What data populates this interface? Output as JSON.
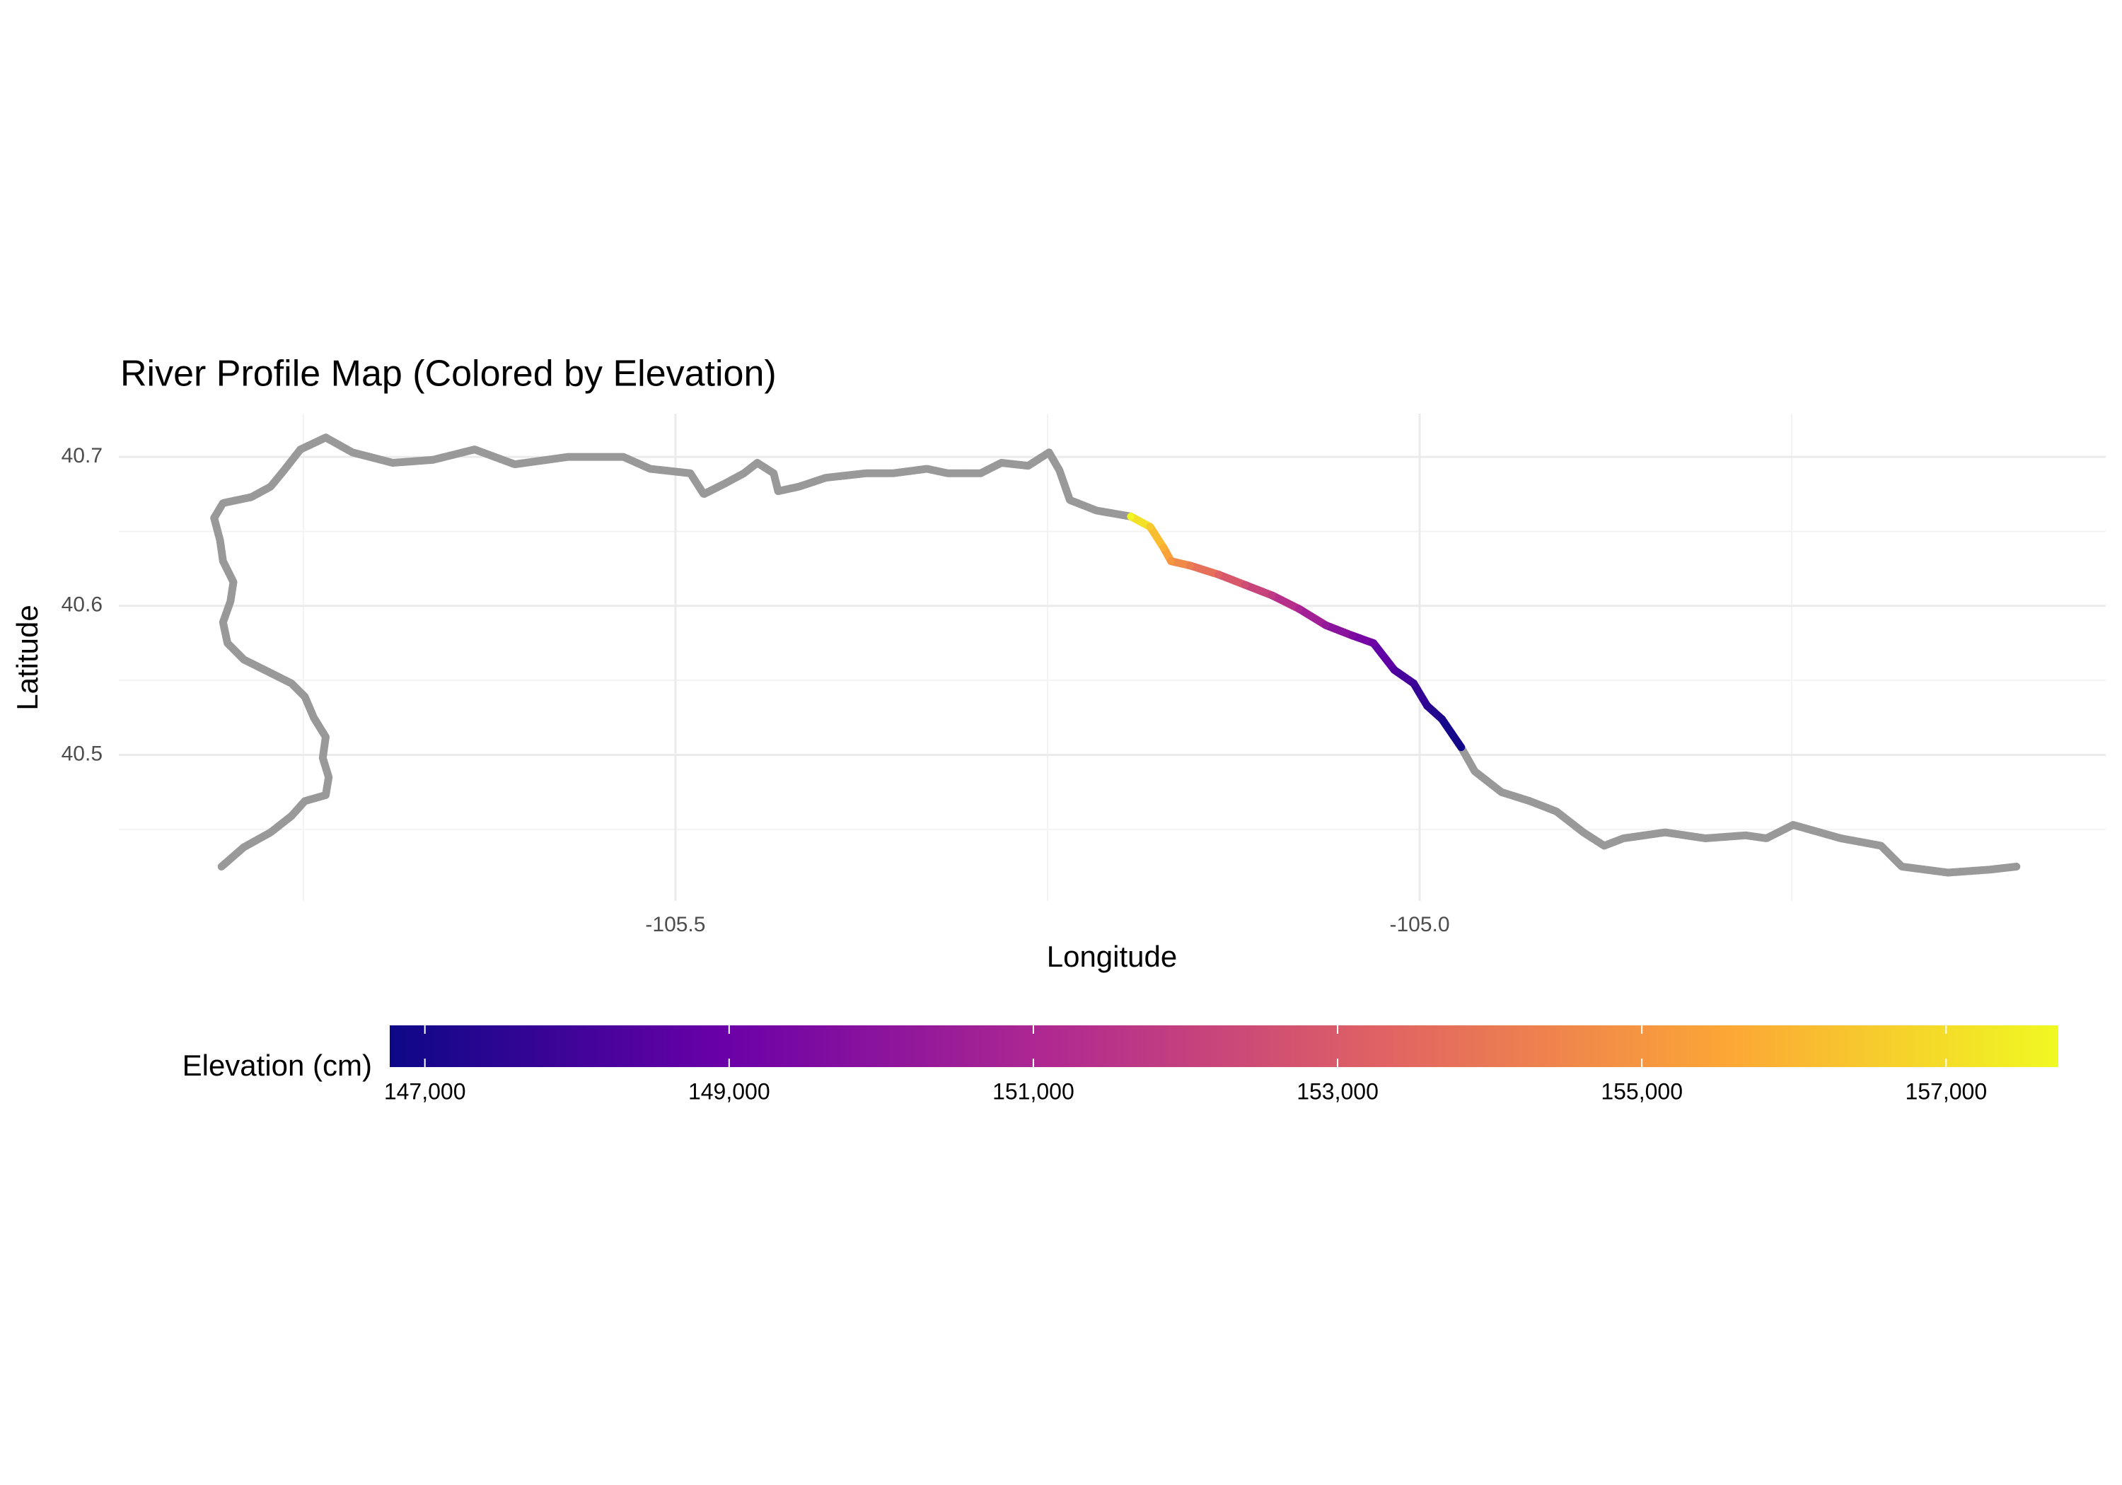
{
  "chart_data": {
    "type": "line",
    "title": "River Profile Map (Colored by Elevation)",
    "x_label": "Longitude",
    "y_label": "Latitude",
    "xlim": [
      -105.874,
      -104.539
    ],
    "ylim": [
      40.402,
      40.729
    ],
    "xticks": [
      -105.5,
      {
        "value": -105,
        "label": "-105.0"
      }
    ],
    "yticks": [
      40.5,
      40.6,
      40.7
    ],
    "xminor": [
      -105.75,
      -105.25,
      -104.75
    ],
    "yminor": [
      40.45,
      40.55,
      40.65
    ],
    "grid": true,
    "series": [
      {
        "color": "#999999",
        "x": [
          -105.805,
          -105.79,
          -105.772,
          -105.758,
          -105.749,
          -105.735,
          -105.733,
          -105.737,
          -105.735,
          -105.743,
          -105.749,
          -105.758,
          -105.772,
          -105.79,
          -105.801,
          -105.804,
          -105.799,
          -105.797,
          -105.804,
          -105.806,
          -105.81,
          -105.804,
          -105.785,
          -105.772,
          -105.763,
          -105.752,
          -105.735,
          -105.717,
          -105.69,
          -105.663,
          -105.635,
          -105.608,
          -105.572,
          -105.535,
          -105.517,
          -105.49,
          -105.481,
          -105.467,
          -105.454,
          -105.445,
          -105.434,
          -105.431,
          -105.417,
          -105.399,
          -105.372,
          -105.354,
          -105.331,
          -105.317,
          -105.295,
          -105.281,
          -105.263,
          -105.249,
          -105.242,
          -105.235,
          -105.217,
          -105.194,
          null,
          -104.972,
          -104.963,
          -104.945,
          -104.926,
          -104.908,
          -104.89,
          -104.876,
          -104.863,
          -104.835,
          -104.808,
          -104.781,
          -104.767,
          -104.749,
          -104.717,
          -104.69,
          -104.676,
          -104.645,
          -104.617,
          -104.599
        ],
        "y": [
          40.425,
          40.438,
          40.448,
          40.459,
          40.469,
          40.473,
          40.485,
          40.498,
          40.512,
          40.525,
          40.539,
          40.548,
          40.555,
          40.564,
          40.575,
          40.589,
          40.603,
          40.616,
          40.63,
          40.644,
          40.659,
          40.669,
          40.673,
          40.68,
          40.691,
          40.705,
          40.713,
          40.703,
          40.696,
          40.698,
          40.705,
          40.695,
          40.7,
          40.7,
          40.692,
          40.689,
          40.675,
          40.682,
          40.689,
          40.696,
          40.689,
          40.677,
          40.68,
          40.686,
          40.689,
          40.689,
          40.692,
          40.689,
          40.689,
          40.696,
          40.694,
          40.703,
          40.691,
          40.671,
          40.664,
          40.66,
          null,
          40.505,
          40.489,
          40.475,
          40.469,
          40.462,
          40.448,
          40.439,
          40.444,
          40.448,
          40.444,
          40.446,
          40.444,
          40.453,
          40.444,
          40.439,
          40.425,
          40.421,
          40.423,
          40.425
        ]
      },
      {
        "x": [
          -105.194,
          -105.181,
          -105.172,
          -105.167,
          -105.154,
          -105.135,
          -105.117,
          -105.099,
          -105.081,
          -105.063,
          -105.045,
          -105.031,
          -105.017,
          -105.004,
          -104.995,
          -104.985,
          -104.972
        ],
        "y": [
          40.66,
          40.653,
          40.639,
          40.63,
          40.627,
          40.621,
          40.614,
          40.607,
          40.598,
          40.587,
          40.58,
          40.575,
          40.557,
          40.548,
          40.533,
          40.524,
          40.505
        ],
        "values": [
          157700,
          156500,
          155800,
          155000,
          154200,
          153300,
          152500,
          151800,
          151000,
          150300,
          149600,
          149100,
          148400,
          147900,
          147500,
          147100,
          146800
        ]
      }
    ],
    "colorbar": {
      "title": "Elevation (cm)",
      "lim": [
        146769,
        157738
      ],
      "colors": [
        "#0d0887",
        "#6a00a8",
        "#b12a90",
        "#e16462",
        "#fca636",
        "#f0f921"
      ],
      "ticks": [
        {
          "value": 147000,
          "label": "147,000"
        },
        {
          "value": 149000,
          "label": "149,000"
        },
        {
          "value": 151000,
          "label": "151,000"
        },
        {
          "value": 153000,
          "label": "153,000"
        },
        {
          "value": 155000,
          "label": "155,000"
        },
        {
          "value": 157000,
          "label": "157,000"
        }
      ]
    }
  }
}
